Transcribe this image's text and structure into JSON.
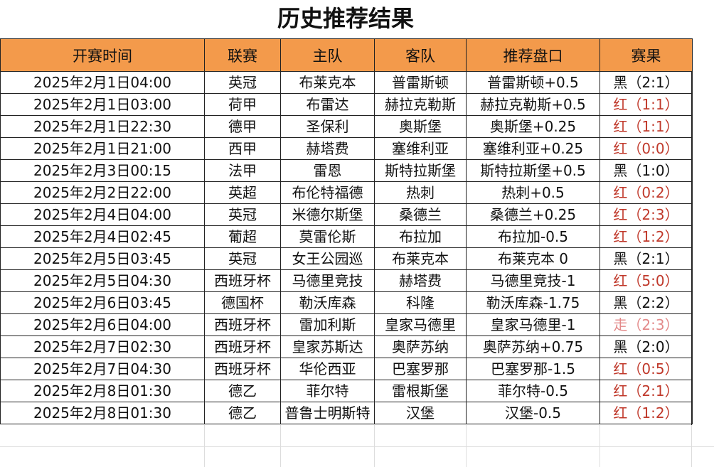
{
  "title": "历史推荐结果",
  "columns": [
    "开赛时间",
    "联赛",
    "主队",
    "客队",
    "推荐盘口",
    "赛果"
  ],
  "colors": {
    "header_bg": "#f39a4b",
    "red": "#c0392b",
    "push": "#e38a8a",
    "black": "#111111"
  },
  "rows": [
    {
      "time": "2025年2月1日04:00",
      "league": "英冠",
      "home": "布莱克本",
      "away": "普雷斯顿",
      "pick": "普雷斯顿+0.5",
      "result": "黑（2:1）",
      "status": "black"
    },
    {
      "time": "2025年2月1日03:00",
      "league": "荷甲",
      "home": "布雷达",
      "away": "赫拉克勒斯",
      "pick": "赫拉克勒斯+0.5",
      "result": "红（1:1）",
      "status": "red"
    },
    {
      "time": "2025年2月1日22:30",
      "league": "德甲",
      "home": "圣保利",
      "away": "奥斯堡",
      "pick": "奥斯堡+0.25",
      "result": "红（1:1）",
      "status": "red"
    },
    {
      "time": "2025年2月1日21:00",
      "league": "西甲",
      "home": "赫塔费",
      "away": "塞维利亚",
      "pick": "塞维利亚+0.25",
      "result": "红（0:0）",
      "status": "red"
    },
    {
      "time": "2025年2月3日00:15",
      "league": "法甲",
      "home": "雷恩",
      "away": "斯特拉斯堡",
      "pick": "斯特拉斯堡+0.5",
      "result": "黑（1:0）",
      "status": "black"
    },
    {
      "time": "2025年2月2日22:00",
      "league": "英超",
      "home": "布伦特福德",
      "away": "热刺",
      "pick": "热刺+0.5",
      "result": "红（0:2）",
      "status": "red"
    },
    {
      "time": "2025年2月4日04:00",
      "league": "英冠",
      "home": "米德尔斯堡",
      "away": "桑德兰",
      "pick": "桑德兰+0.25",
      "result": "红（2:3）",
      "status": "red"
    },
    {
      "time": "2025年2月4日02:45",
      "league": "葡超",
      "home": "莫雷伦斯",
      "away": "布拉加",
      "pick": "布拉加-0.5",
      "result": "红（1:2）",
      "status": "red"
    },
    {
      "time": "2025年2月5日03:45",
      "league": "英冠",
      "home": "女王公园巡",
      "away": "布莱克本",
      "pick": "布莱克本 0",
      "result": "黑（2:1）",
      "status": "black"
    },
    {
      "time": "2025年2月5日04:30",
      "league": "西班牙杯",
      "home": "马德里竞技",
      "away": "赫塔费",
      "pick": "马德里竞技-1",
      "result": "红（5:0）",
      "status": "red"
    },
    {
      "time": "2025年2月6日03:45",
      "league": "德国杯",
      "home": "勒沃库森",
      "away": "科隆",
      "pick": "勒沃库森-1.75",
      "result": "黑（2:2）",
      "status": "black"
    },
    {
      "time": "2025年2月6日04:00",
      "league": "西班牙杯",
      "home": "雷加利斯",
      "away": "皇家马德里",
      "pick": "皇家马德里-1",
      "result": "走（2:3）",
      "status": "pink"
    },
    {
      "time": "2025年2月7日02:30",
      "league": "西班牙杯",
      "home": "皇家苏斯达",
      "away": "奥萨苏纳",
      "pick": "奥萨苏纳+0.75",
      "result": "黑（2:0）",
      "status": "black"
    },
    {
      "time": "2025年2月7日04:30",
      "league": "西班牙杯",
      "home": "华伦西亚",
      "away": "巴塞罗那",
      "pick": "巴塞罗那-1.5",
      "result": "红（0:5）",
      "status": "red"
    },
    {
      "time": "2025年2月8日01:30",
      "league": "德乙",
      "home": "菲尔特",
      "away": "雷根斯堡",
      "pick": "菲尔特-0.5",
      "result": "红（2:1）",
      "status": "red"
    },
    {
      "time": "2025年2月8日01:30",
      "league": "德乙",
      "home": "普鲁士明斯特",
      "away": "汉堡",
      "pick": "汉堡-0.5",
      "result": "红（1:2）",
      "status": "red"
    }
  ]
}
